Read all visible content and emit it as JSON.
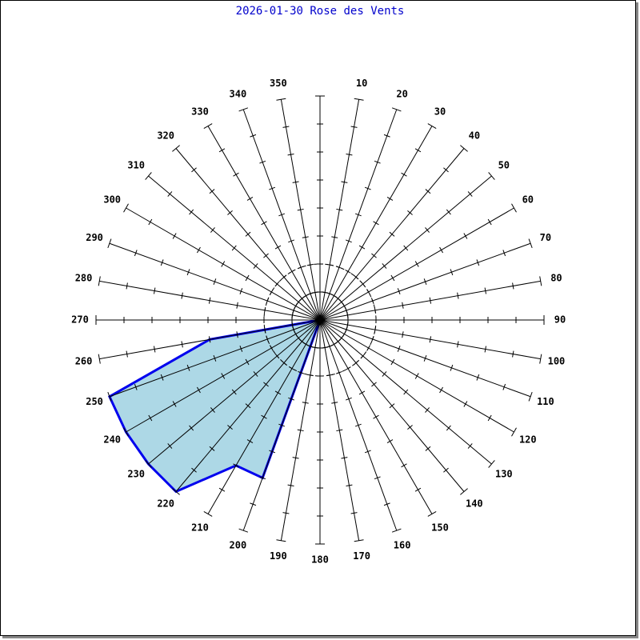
{
  "chart_data": {
    "type": "windrose",
    "title": "2026-01-30 Rose des Vents",
    "categories": [
      null,
      "10",
      "20",
      "30",
      "40",
      "50",
      "60",
      "70",
      "80",
      "90",
      "100",
      "110",
      "120",
      "130",
      "140",
      "150",
      "160",
      "170",
      "180",
      "190",
      "200",
      "210",
      "220",
      "230",
      "240",
      "250",
      "260",
      "270",
      "280",
      "290",
      "300",
      "310",
      "320",
      "330",
      "340",
      "350"
    ],
    "values": [
      0,
      0,
      0,
      0,
      0,
      0,
      0,
      0,
      0,
      0,
      0,
      0,
      0,
      0,
      0,
      0,
      0,
      0,
      0,
      0,
      6,
      6,
      8,
      8,
      8,
      8,
      4,
      0,
      0,
      0,
      0,
      0,
      0,
      0,
      0,
      0
    ],
    "color": "#0000ee",
    "fill": "#add8e6",
    "rlim": [
      0,
      8
    ],
    "rticks": [
      1,
      2,
      3,
      4,
      5,
      6,
      7,
      8
    ]
  }
}
